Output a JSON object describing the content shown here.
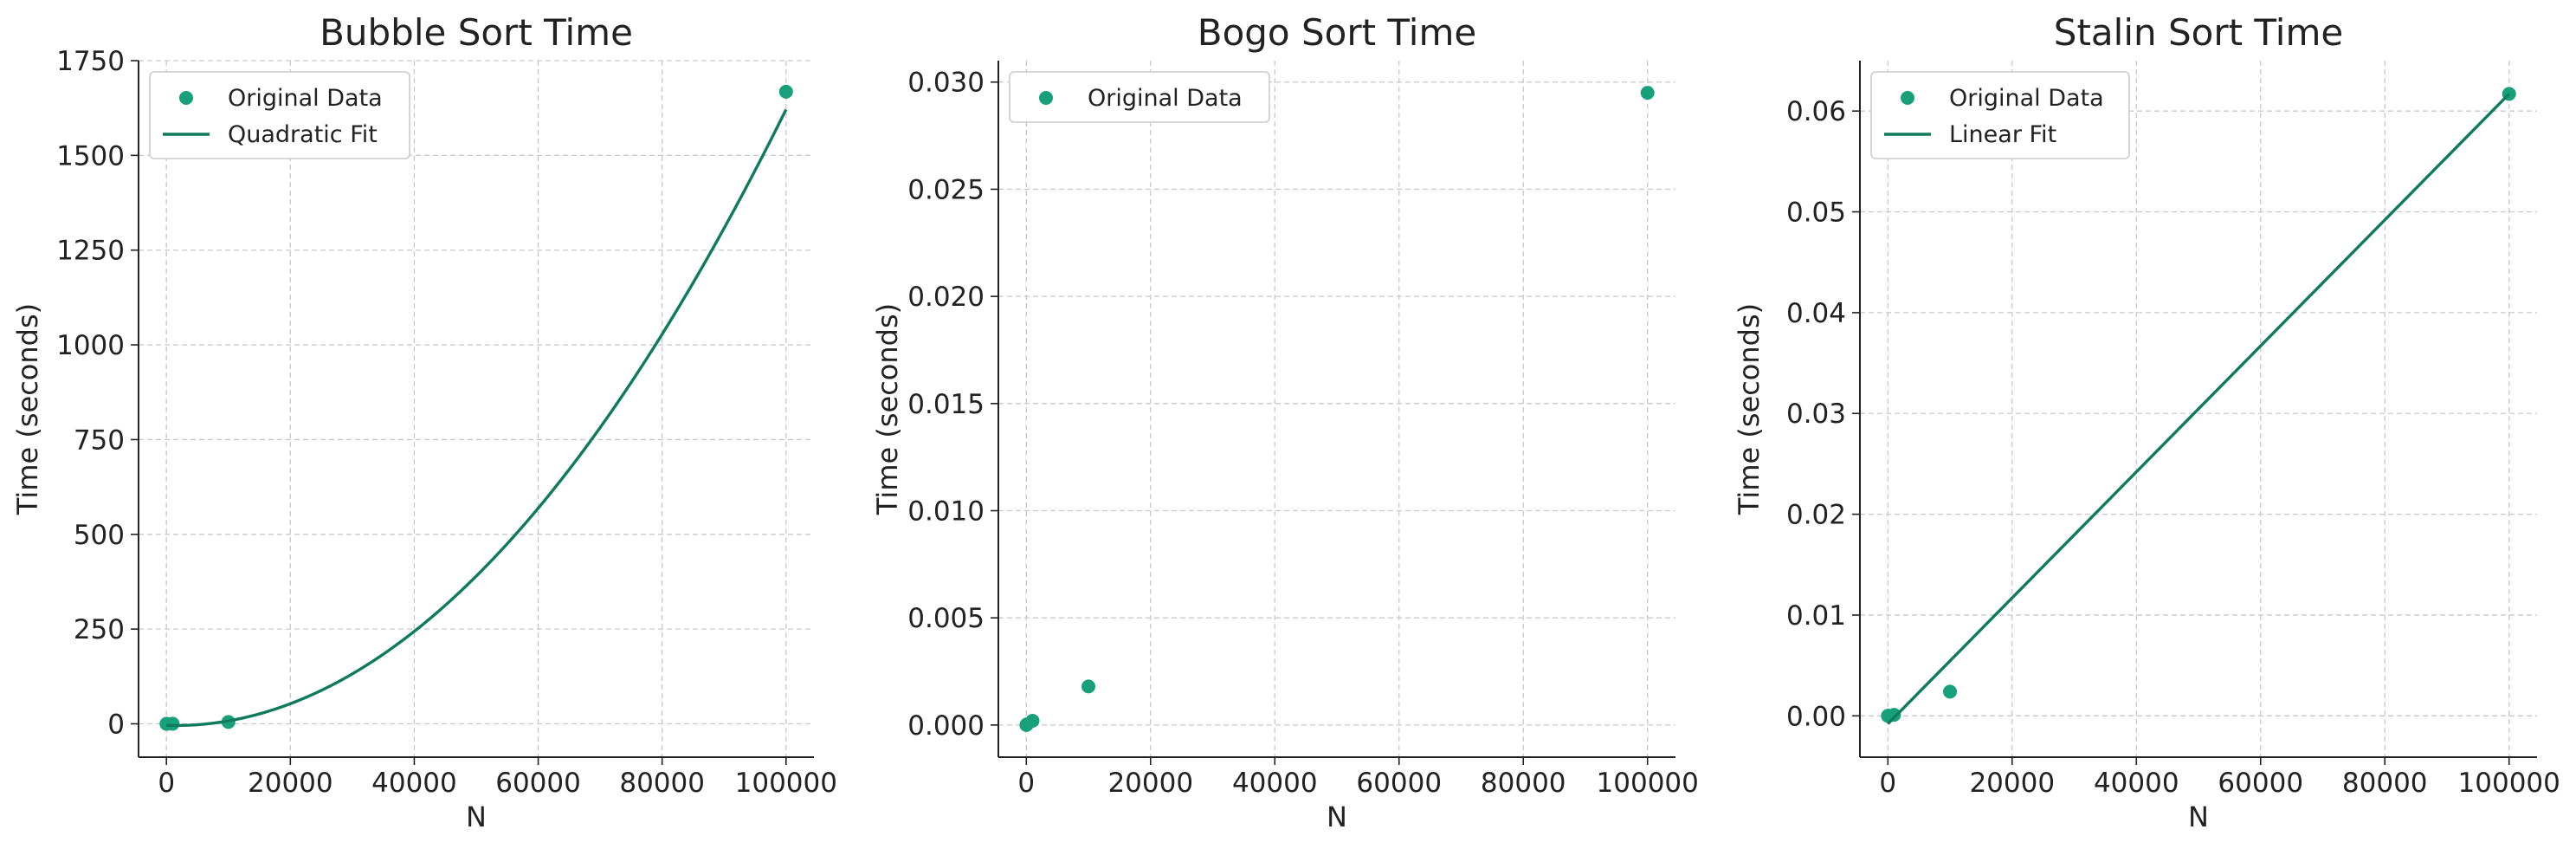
{
  "colors": {
    "point": "#17a07a",
    "fit": "#0f7a5c",
    "grid": "#c9c9c9",
    "axis": "#222222",
    "text": "#222222",
    "legend_border": "#cccccc"
  },
  "chart_data": [
    {
      "type": "scatter",
      "title": "Bubble Sort Time",
      "xlabel": "N",
      "ylabel": "Time (seconds)",
      "xlim": [
        -4500,
        104500
      ],
      "ylim": [
        -88,
        1750
      ],
      "x_ticks": [
        0,
        20000,
        40000,
        60000,
        80000,
        100000
      ],
      "x_tick_labels": [
        "0",
        "20000",
        "40000",
        "60000",
        "80000",
        "100000"
      ],
      "y_ticks": [
        0,
        250,
        500,
        750,
        1000,
        1250,
        1500,
        1750
      ],
      "y_tick_labels": [
        "0",
        "250",
        "500",
        "750",
        "1000",
        "1250",
        "1500",
        "1750"
      ],
      "grid": true,
      "legend_position": "top-left",
      "series": [
        {
          "name": "Original Data",
          "kind": "points",
          "x": [
            10,
            100,
            1000,
            10000,
            100000
          ],
          "y": [
            0,
            0,
            0.2,
            5,
            1668
          ]
        },
        {
          "name": "Quadratic Fit",
          "kind": "curve",
          "fit": "quadratic",
          "coeffs": [
            1.675e-07,
            -0.0005,
            -4
          ],
          "x_range": [
            0,
            100000
          ]
        }
      ]
    },
    {
      "type": "scatter",
      "title": "Bogo Sort Time",
      "xlabel": "N",
      "ylabel": "Time (seconds)",
      "xlim": [
        -4500,
        104500
      ],
      "ylim": [
        -0.0015,
        0.031
      ],
      "x_ticks": [
        0,
        20000,
        40000,
        60000,
        80000,
        100000
      ],
      "x_tick_labels": [
        "0",
        "20000",
        "40000",
        "60000",
        "80000",
        "100000"
      ],
      "y_ticks": [
        0,
        0.005,
        0.01,
        0.015,
        0.02,
        0.025,
        0.03
      ],
      "y_tick_labels": [
        "0.000",
        "0.005",
        "0.010",
        "0.015",
        "0.020",
        "0.025",
        "0.030"
      ],
      "grid": true,
      "legend_position": "top-left",
      "series": [
        {
          "name": "Original Data",
          "kind": "points",
          "x": [
            10,
            100,
            1000,
            10000,
            100000
          ],
          "y": [
            0.0,
            3e-05,
            0.0002,
            0.0018,
            0.0295
          ]
        }
      ]
    },
    {
      "type": "scatter",
      "title": "Stalin Sort Time",
      "xlabel": "N",
      "ylabel": "Time (seconds)",
      "xlim": [
        -4500,
        104500
      ],
      "ylim": [
        -0.0041,
        0.065
      ],
      "x_ticks": [
        0,
        20000,
        40000,
        60000,
        80000,
        100000
      ],
      "x_tick_labels": [
        "0",
        "20000",
        "40000",
        "60000",
        "80000",
        "100000"
      ],
      "y_ticks": [
        0,
        0.01,
        0.02,
        0.03,
        0.04,
        0.05,
        0.06
      ],
      "y_tick_labels": [
        "0.00",
        "0.01",
        "0.02",
        "0.03",
        "0.04",
        "0.05",
        "0.06"
      ],
      "grid": true,
      "legend_position": "top-left",
      "series": [
        {
          "name": "Original Data",
          "kind": "points",
          "x": [
            10,
            100,
            1000,
            10000,
            100000
          ],
          "y": [
            0.0,
            1e-05,
            0.0001,
            0.0024,
            0.0617
          ]
        },
        {
          "name": "Linear Fit",
          "kind": "line",
          "fit": "linear",
          "coeffs": [
            6.25e-07,
            -0.0008
          ],
          "x_range": [
            0,
            100000
          ]
        }
      ]
    }
  ]
}
